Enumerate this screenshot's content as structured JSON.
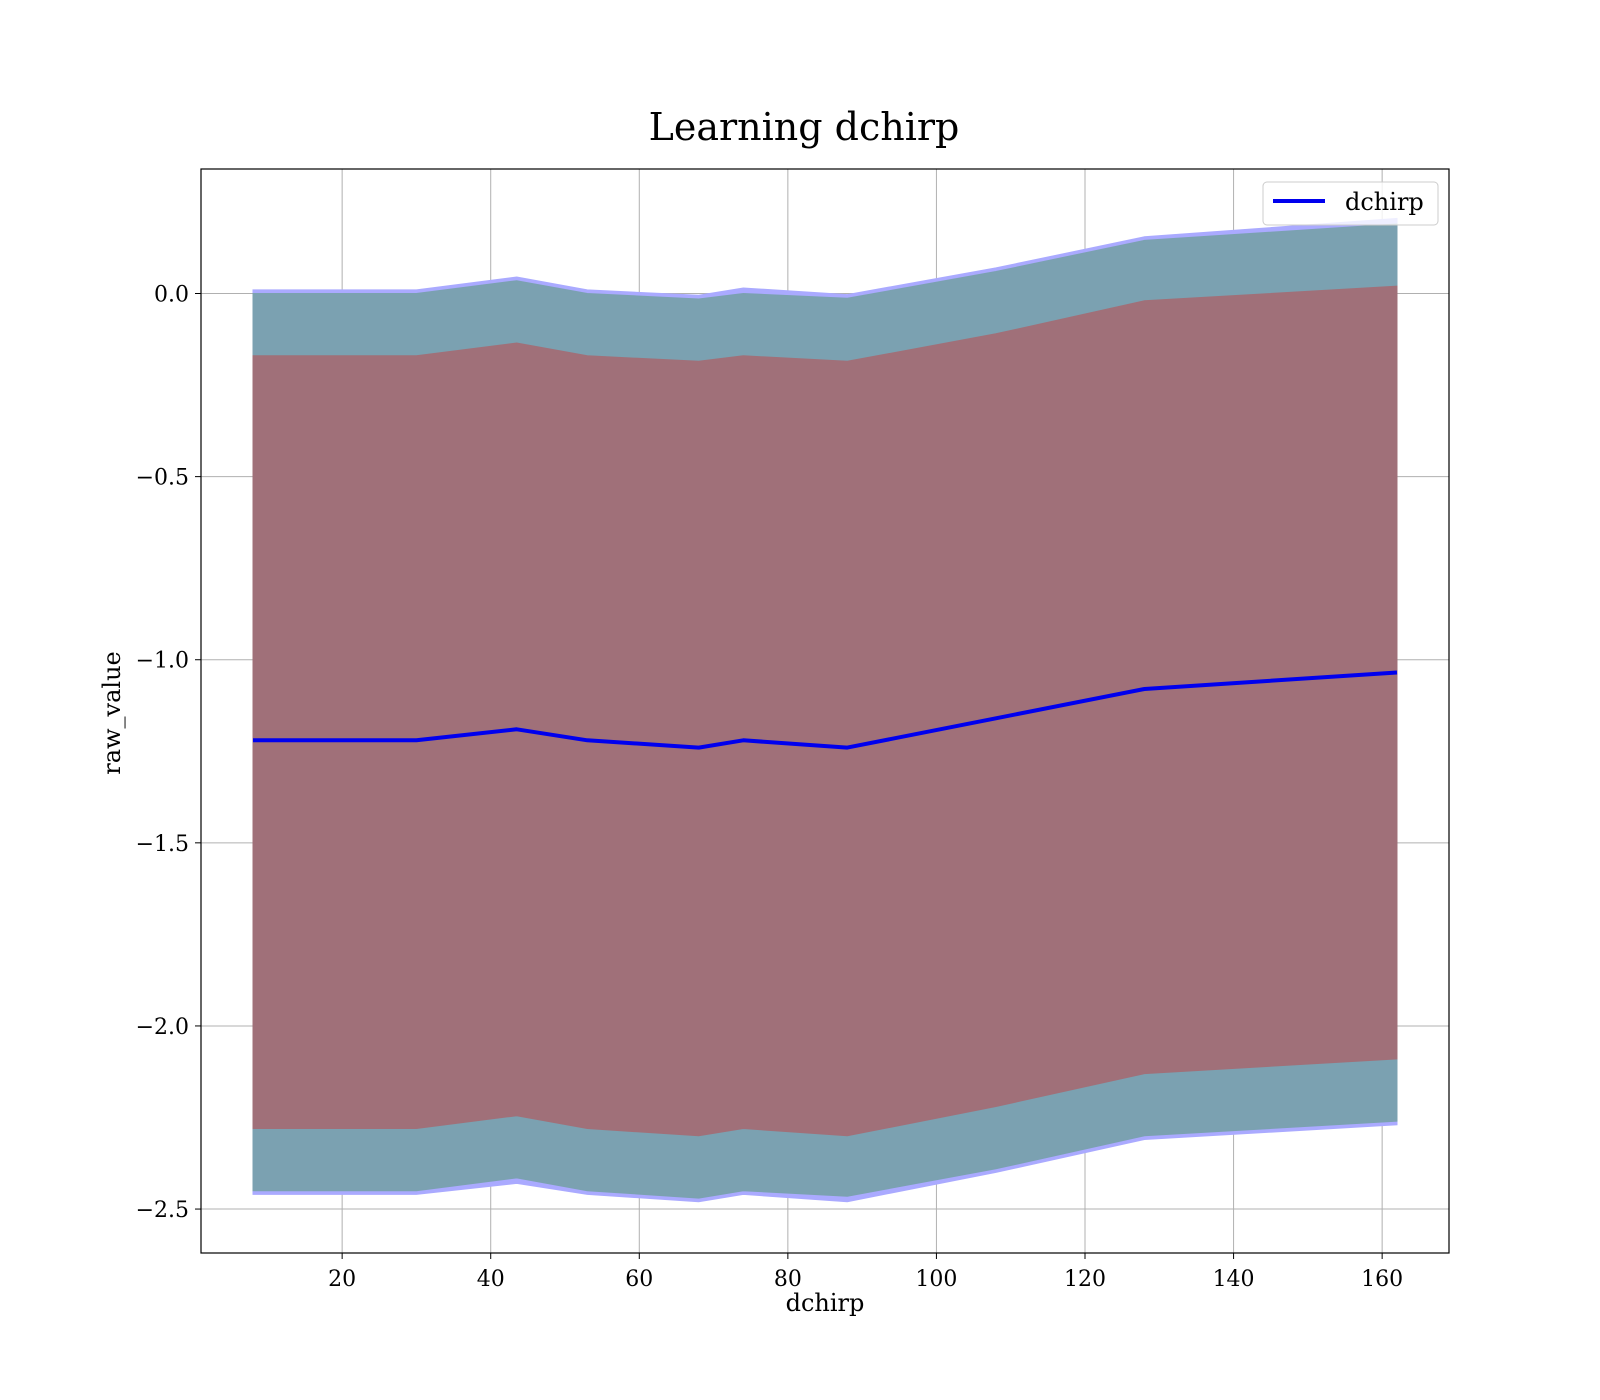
{
  "chart_data": {
    "type": "line",
    "title": "Learning dchirp",
    "xlabel": "dchirp",
    "ylabel": "raw_value",
    "xlim": [
      1,
      169
    ],
    "ylim": [
      -2.62,
      0.34
    ],
    "xticks": [
      20,
      40,
      60,
      80,
      100,
      120,
      140,
      160
    ],
    "xtick_labels": [
      "20",
      "40",
      "60",
      "80",
      "100",
      "120",
      "140",
      "160"
    ],
    "yticks": [
      0.0,
      -0.5,
      -1.0,
      -1.5,
      -2.0,
      -2.5
    ],
    "ytick_labels": [
      "0.0",
      "−0.5",
      "−1.0",
      "−1.5",
      "−2.0",
      "−2.5"
    ],
    "grid": true,
    "legend": {
      "location": "top-right",
      "entries": [
        "dchirp"
      ]
    },
    "colors": {
      "line": "#0000ee",
      "outer_band": "#aaaaff",
      "middle_band": "#7ba1b1",
      "inner_band": "#a07079"
    },
    "x": [
      8,
      30,
      43.5,
      53,
      68,
      74,
      88,
      108,
      128,
      162
    ],
    "series": [
      {
        "name": "dchirp",
        "values": [
          -1.22,
          -1.22,
          -1.19,
          -1.22,
          -1.24,
          -1.22,
          -1.24,
          -1.16,
          -1.08,
          -1.035
        ]
      }
    ],
    "bands": [
      {
        "upper": [
          0.01,
          0.01,
          0.045,
          0.01,
          -0.005,
          0.015,
          -0.003,
          0.07,
          0.155,
          0.205
        ],
        "lower": [
          -2.46,
          -2.46,
          -2.43,
          -2.46,
          -2.48,
          -2.46,
          -2.48,
          -2.4,
          -2.31,
          -2.27
        ]
      },
      {
        "upper": [
          0.0,
          0.0,
          0.035,
          0.0,
          -0.015,
          0.0,
          -0.013,
          0.06,
          0.145,
          0.19
        ],
        "lower": [
          -2.45,
          -2.45,
          -2.415,
          -2.45,
          -2.47,
          -2.45,
          -2.465,
          -2.39,
          -2.3,
          -2.26
        ]
      },
      {
        "upper": [
          -0.17,
          -0.17,
          -0.135,
          -0.17,
          -0.185,
          -0.17,
          -0.185,
          -0.11,
          -0.02,
          0.02
        ],
        "lower": [
          -2.28,
          -2.28,
          -2.245,
          -2.28,
          -2.3,
          -2.28,
          -2.3,
          -2.22,
          -2.13,
          -2.09
        ]
      }
    ]
  }
}
